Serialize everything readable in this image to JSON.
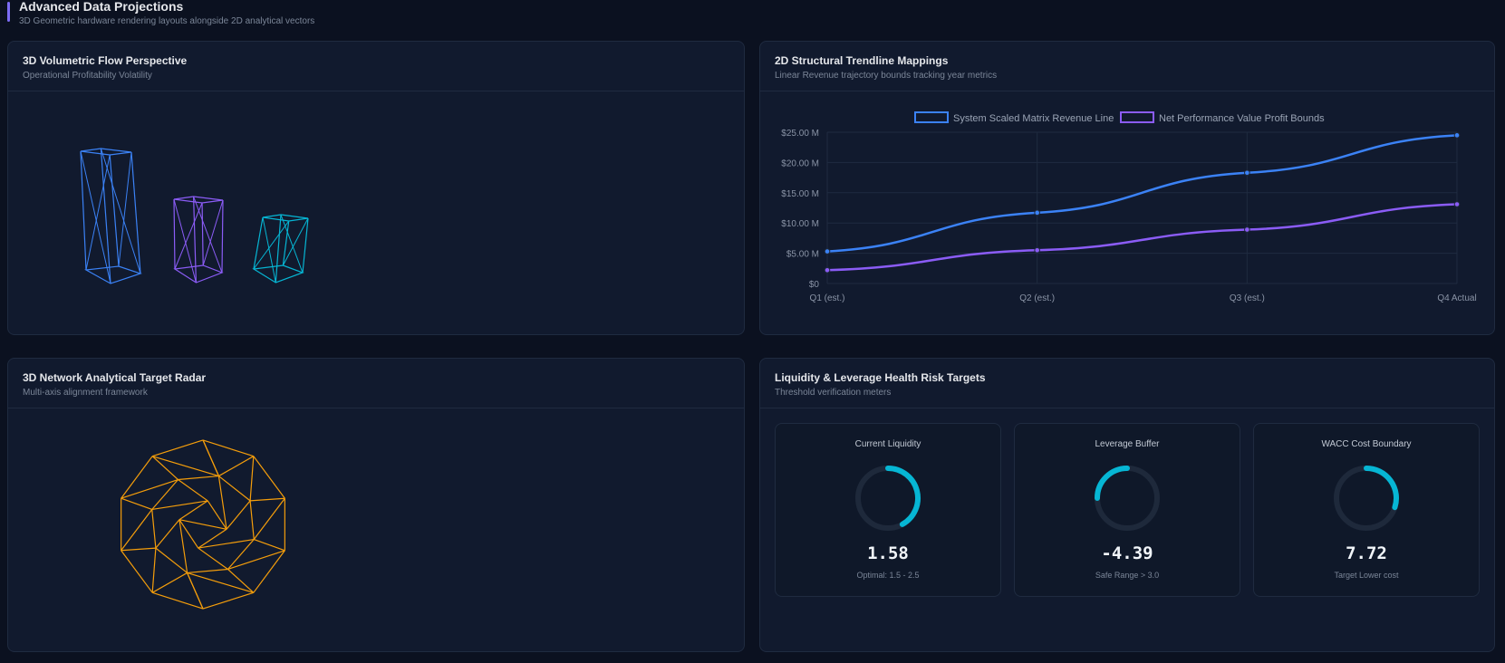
{
  "header": {
    "title": "Advanced Data Projections",
    "subtitle": "3D Geometric hardware rendering layouts alongside 2D analytical vectors"
  },
  "volumetric": {
    "title": "3D Volumetric Flow Perspective",
    "subtitle": "Operational Profitability Volatility",
    "colors": [
      "#3b82f6",
      "#8b5cf6",
      "#06b6d4"
    ]
  },
  "trend": {
    "title": "2D Structural Trendline Mappings",
    "subtitle": "Linear Revenue trajectory bounds tracking year metrics"
  },
  "radar": {
    "title": "3D Network Analytical Target Radar",
    "subtitle": "Multi-axis alignment framework",
    "color": "#f59e0b"
  },
  "risk": {
    "title": "Liquidity & Leverage Health Risk Targets",
    "subtitle": "Threshold verification meters",
    "gauges": [
      {
        "title": "Current Liquidity",
        "value": "1.58",
        "note": "Optimal: 1.5 - 2.5",
        "fill": 0.42,
        "start_deg": 0,
        "direction": "cw"
      },
      {
        "title": "Leverage Buffer",
        "value": "-4.39",
        "note": "Safe Range > 3.0",
        "fill": 0.25,
        "start_deg": 0,
        "direction": "ccw"
      },
      {
        "title": "WACC Cost Boundary",
        "value": "7.72",
        "note": "Target Lower cost",
        "fill": 0.3,
        "start_deg": 0,
        "direction": "cw"
      }
    ],
    "accent": "#06b6d4",
    "track": "#1e293b"
  },
  "chart_data": {
    "type": "line",
    "categories": [
      "Q1 (est.)",
      "Q2 (est.)",
      "Q3 (est.)",
      "Q4 Actual"
    ],
    "series": [
      {
        "name": "System Scaled Matrix Revenue Line",
        "color": "#3b82f6",
        "values": [
          5.3,
          11.7,
          18.3,
          24.5
        ]
      },
      {
        "name": "Net Performance Value Profit Bounds",
        "color": "#8b5cf6",
        "values": [
          2.2,
          5.5,
          8.9,
          13.1
        ]
      }
    ],
    "yticks": [
      "$0",
      "$5.00 M",
      "$10.00 M",
      "$15.00 M",
      "$20.00 M",
      "$25.00 M"
    ],
    "ylim": [
      0,
      25
    ],
    "grid": true,
    "legend": "top"
  }
}
